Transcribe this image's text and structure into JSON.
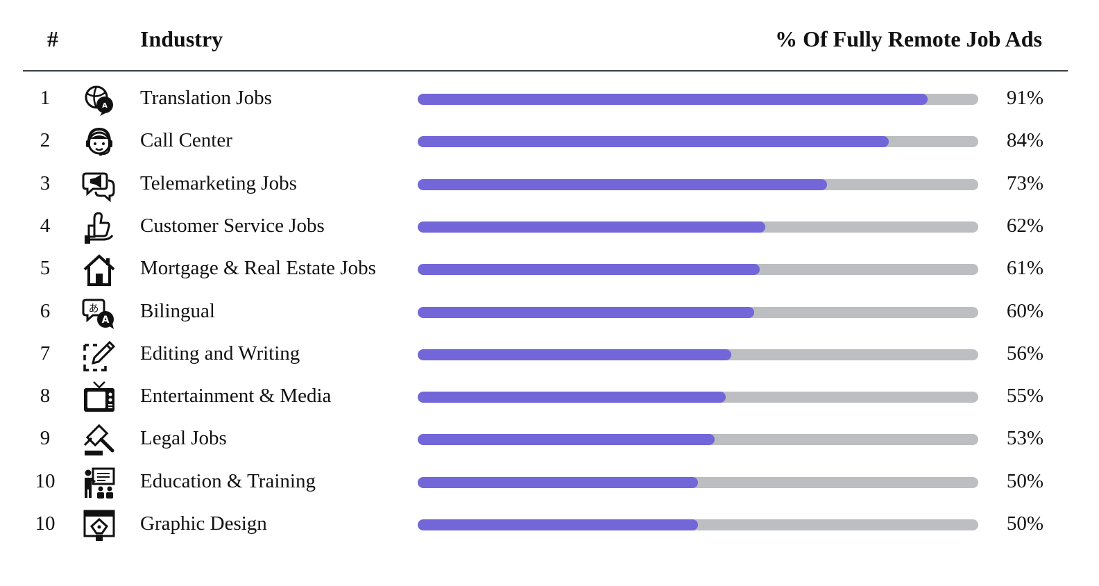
{
  "header": {
    "rank": "#",
    "industry": "Industry",
    "percent": "% Of Fully Remote Job Ads"
  },
  "colors": {
    "bar_fill": "#7266d9",
    "bar_track": "#bcbec1",
    "rule": "#3a3f44"
  },
  "chart_data": {
    "type": "bar",
    "orientation": "horizontal",
    "xlim": [
      0,
      100
    ],
    "rows": [
      {
        "rank": "1",
        "icon": "translation-icon",
        "label": "Translation Jobs",
        "value": 91,
        "value_label": "91%"
      },
      {
        "rank": "2",
        "icon": "headset-agent-icon",
        "label": "Call Center",
        "value": 84,
        "value_label": "84%"
      },
      {
        "rank": "3",
        "icon": "megaphone-chat-icon",
        "label": "Telemarketing Jobs",
        "value": 73,
        "value_label": "73%"
      },
      {
        "rank": "4",
        "icon": "thumbs-up-hand-icon",
        "label": "Customer Service Jobs",
        "value": 62,
        "value_label": "62%"
      },
      {
        "rank": "5",
        "icon": "house-icon",
        "label": "Mortgage & Real Estate Jobs",
        "value": 61,
        "value_label": "61%"
      },
      {
        "rank": "6",
        "icon": "bilingual-chat-icon",
        "label": "Bilingual",
        "value": 60,
        "value_label": "60%"
      },
      {
        "rank": "7",
        "icon": "edit-pencil-icon",
        "label": "Editing and Writing",
        "value": 56,
        "value_label": "56%"
      },
      {
        "rank": "8",
        "icon": "tv-icon",
        "label": "Entertainment & Media",
        "value": 55,
        "value_label": "55%"
      },
      {
        "rank": "9",
        "icon": "gavel-icon",
        "label": "Legal Jobs",
        "value": 53,
        "value_label": "53%"
      },
      {
        "rank": "10",
        "icon": "classroom-icon",
        "label": "Education & Training",
        "value": 50,
        "value_label": "50%"
      },
      {
        "rank": "10",
        "icon": "design-pen-icon",
        "label": "Graphic Design",
        "value": 50,
        "value_label": "50%"
      }
    ]
  }
}
